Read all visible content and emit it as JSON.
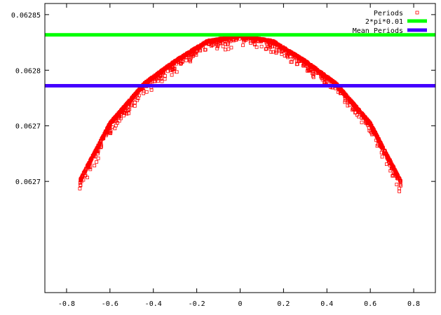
{
  "chart_data": {
    "type": "scatter",
    "title": "",
    "xlabel": "",
    "ylabel": "",
    "xlim": [
      -0.9,
      0.9
    ],
    "ylim": [
      0.0626,
      0.06286
    ],
    "x_ticks": [
      -0.8,
      -0.6,
      -0.4,
      -0.2,
      0,
      0.2,
      0.4,
      0.6,
      0.8
    ],
    "x_tick_labels": [
      "-0.8",
      "-0.6",
      "-0.4",
      "-0.2",
      "0",
      "0.2",
      "0.4",
      "0.6",
      "0.8"
    ],
    "y_ticks": [
      0.0627,
      0.06275,
      0.0628,
      0.06285
    ],
    "y_tick_labels": [
      "0.0627",
      "0.0627",
      "0.0628",
      "0.06285"
    ],
    "grid": false,
    "legend_position": "top-right",
    "series": [
      {
        "name": "Periods",
        "kind": "points",
        "color": "#ff0000",
        "marker": "open-square",
        "sample_x": [
          -0.74,
          -0.6,
          -0.44,
          -0.3,
          -0.15,
          0,
          0.15,
          0.3,
          0.44,
          0.6,
          0.74
        ],
        "sample_y": [
          0.0627,
          0.062752,
          0.062788,
          0.062808,
          0.062826,
          0.062831,
          0.062826,
          0.062808,
          0.062788,
          0.062752,
          0.0627
        ]
      },
      {
        "name": "2*pi*0.01",
        "kind": "hline",
        "color": "#00ff00",
        "y": 0.0628318
      },
      {
        "name": "Mean Periods",
        "kind": "hline",
        "color": "#4400ff",
        "y": 0.062786
      }
    ]
  }
}
